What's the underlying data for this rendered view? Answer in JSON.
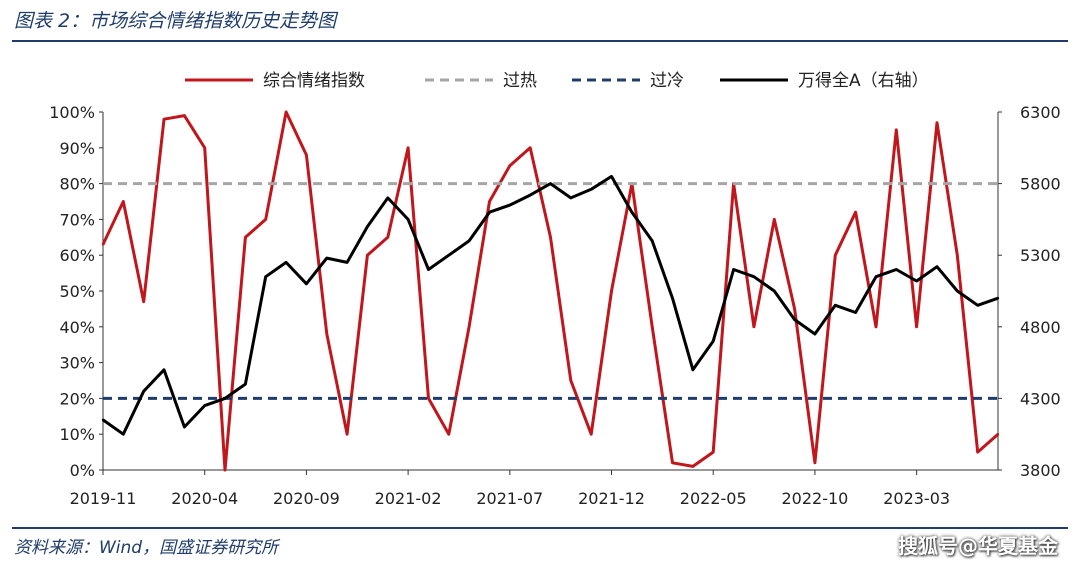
{
  "figure": {
    "title": "图表 2：市场综合情绪指数历史走势图",
    "source": "资料来源：Wind，国盛证券研究所",
    "watermark": "搜狐号@华夏基金"
  },
  "chart_data": {
    "type": "line",
    "x_ticks": [
      "2019-11",
      "2020-04",
      "2020-09",
      "2021-02",
      "2021-07",
      "2021-12",
      "2022-05",
      "2022-10",
      "2023-03"
    ],
    "x_range": [
      "2019-11",
      "2023-07"
    ],
    "y_left": {
      "ticks": [
        "0%",
        "10%",
        "20%",
        "30%",
        "40%",
        "50%",
        "60%",
        "70%",
        "80%",
        "90%",
        "100%"
      ],
      "range": [
        0,
        100
      ]
    },
    "y_right": {
      "label": "右轴",
      "ticks": [
        "3800",
        "4300",
        "4800",
        "5300",
        "5800",
        "6300"
      ],
      "range": [
        3800,
        6300
      ]
    },
    "grid": false,
    "legend_placement": "top",
    "legend": [
      {
        "label": "综合情绪指数",
        "color": "#c0161c",
        "style": "solid"
      },
      {
        "label": "过热",
        "color": "#a6a6a6",
        "style": "dashed"
      },
      {
        "label": "过冷",
        "color": "#1f3d6b",
        "style": "dashed"
      },
      {
        "label": "万得全A（右轴）",
        "color": "#000000",
        "style": "solid"
      }
    ],
    "series": [
      {
        "name": "综合情绪指数",
        "axis": "left",
        "color": "#c0161c",
        "x": [
          "2019-11",
          "2019-12",
          "2020-01",
          "2020-02",
          "2020-03",
          "2020-04",
          "2020-05",
          "2020-06",
          "2020-07",
          "2020-08",
          "2020-09",
          "2020-10",
          "2020-11",
          "2020-12",
          "2021-01",
          "2021-02",
          "2021-03",
          "2021-04",
          "2021-05",
          "2021-06",
          "2021-07",
          "2021-08",
          "2021-09",
          "2021-10",
          "2021-11",
          "2021-12",
          "2022-01",
          "2022-02",
          "2022-03",
          "2022-04",
          "2022-05",
          "2022-06",
          "2022-07",
          "2022-08",
          "2022-09",
          "2022-10",
          "2022-11",
          "2022-12",
          "2023-01",
          "2023-02",
          "2023-03",
          "2023-04",
          "2023-05",
          "2023-06",
          "2023-07"
        ],
        "values": [
          63,
          75,
          47,
          98,
          99,
          90,
          0,
          65,
          70,
          100,
          88,
          38,
          10,
          60,
          65,
          90,
          20,
          10,
          40,
          75,
          85,
          90,
          65,
          25,
          10,
          50,
          80,
          40,
          2,
          1,
          5,
          80,
          40,
          70,
          45,
          2,
          60,
          72,
          40,
          95,
          40,
          97,
          60,
          5,
          10
        ]
      },
      {
        "name": "过热",
        "axis": "left",
        "color": "#a6a6a6",
        "constant": 80
      },
      {
        "name": "过冷",
        "axis": "left",
        "color": "#1f3d6b",
        "constant": 20
      },
      {
        "name": "万得全A（右轴）",
        "axis": "right",
        "color": "#000000",
        "x": [
          "2019-11",
          "2019-12",
          "2020-01",
          "2020-02",
          "2020-03",
          "2020-04",
          "2020-05",
          "2020-06",
          "2020-07",
          "2020-08",
          "2020-09",
          "2020-10",
          "2020-11",
          "2020-12",
          "2021-01",
          "2021-02",
          "2021-03",
          "2021-04",
          "2021-05",
          "2021-06",
          "2021-07",
          "2021-08",
          "2021-09",
          "2021-10",
          "2021-11",
          "2021-12",
          "2022-01",
          "2022-02",
          "2022-03",
          "2022-04",
          "2022-05",
          "2022-06",
          "2022-07",
          "2022-08",
          "2022-09",
          "2022-10",
          "2022-11",
          "2022-12",
          "2023-01",
          "2023-02",
          "2023-03",
          "2023-04",
          "2023-05",
          "2023-06",
          "2023-07"
        ],
        "values": [
          4150,
          4050,
          4350,
          4500,
          4100,
          4250,
          4300,
          4400,
          5150,
          5250,
          5100,
          5280,
          5250,
          5500,
          5700,
          5550,
          5200,
          5300,
          5400,
          5600,
          5650,
          5720,
          5800,
          5700,
          5760,
          5850,
          5600,
          5400,
          5000,
          4500,
          4700,
          5200,
          5150,
          5050,
          4850,
          4750,
          4950,
          4900,
          5150,
          5200,
          5120,
          5220,
          5050,
          4950,
          5000
        ]
      }
    ]
  }
}
